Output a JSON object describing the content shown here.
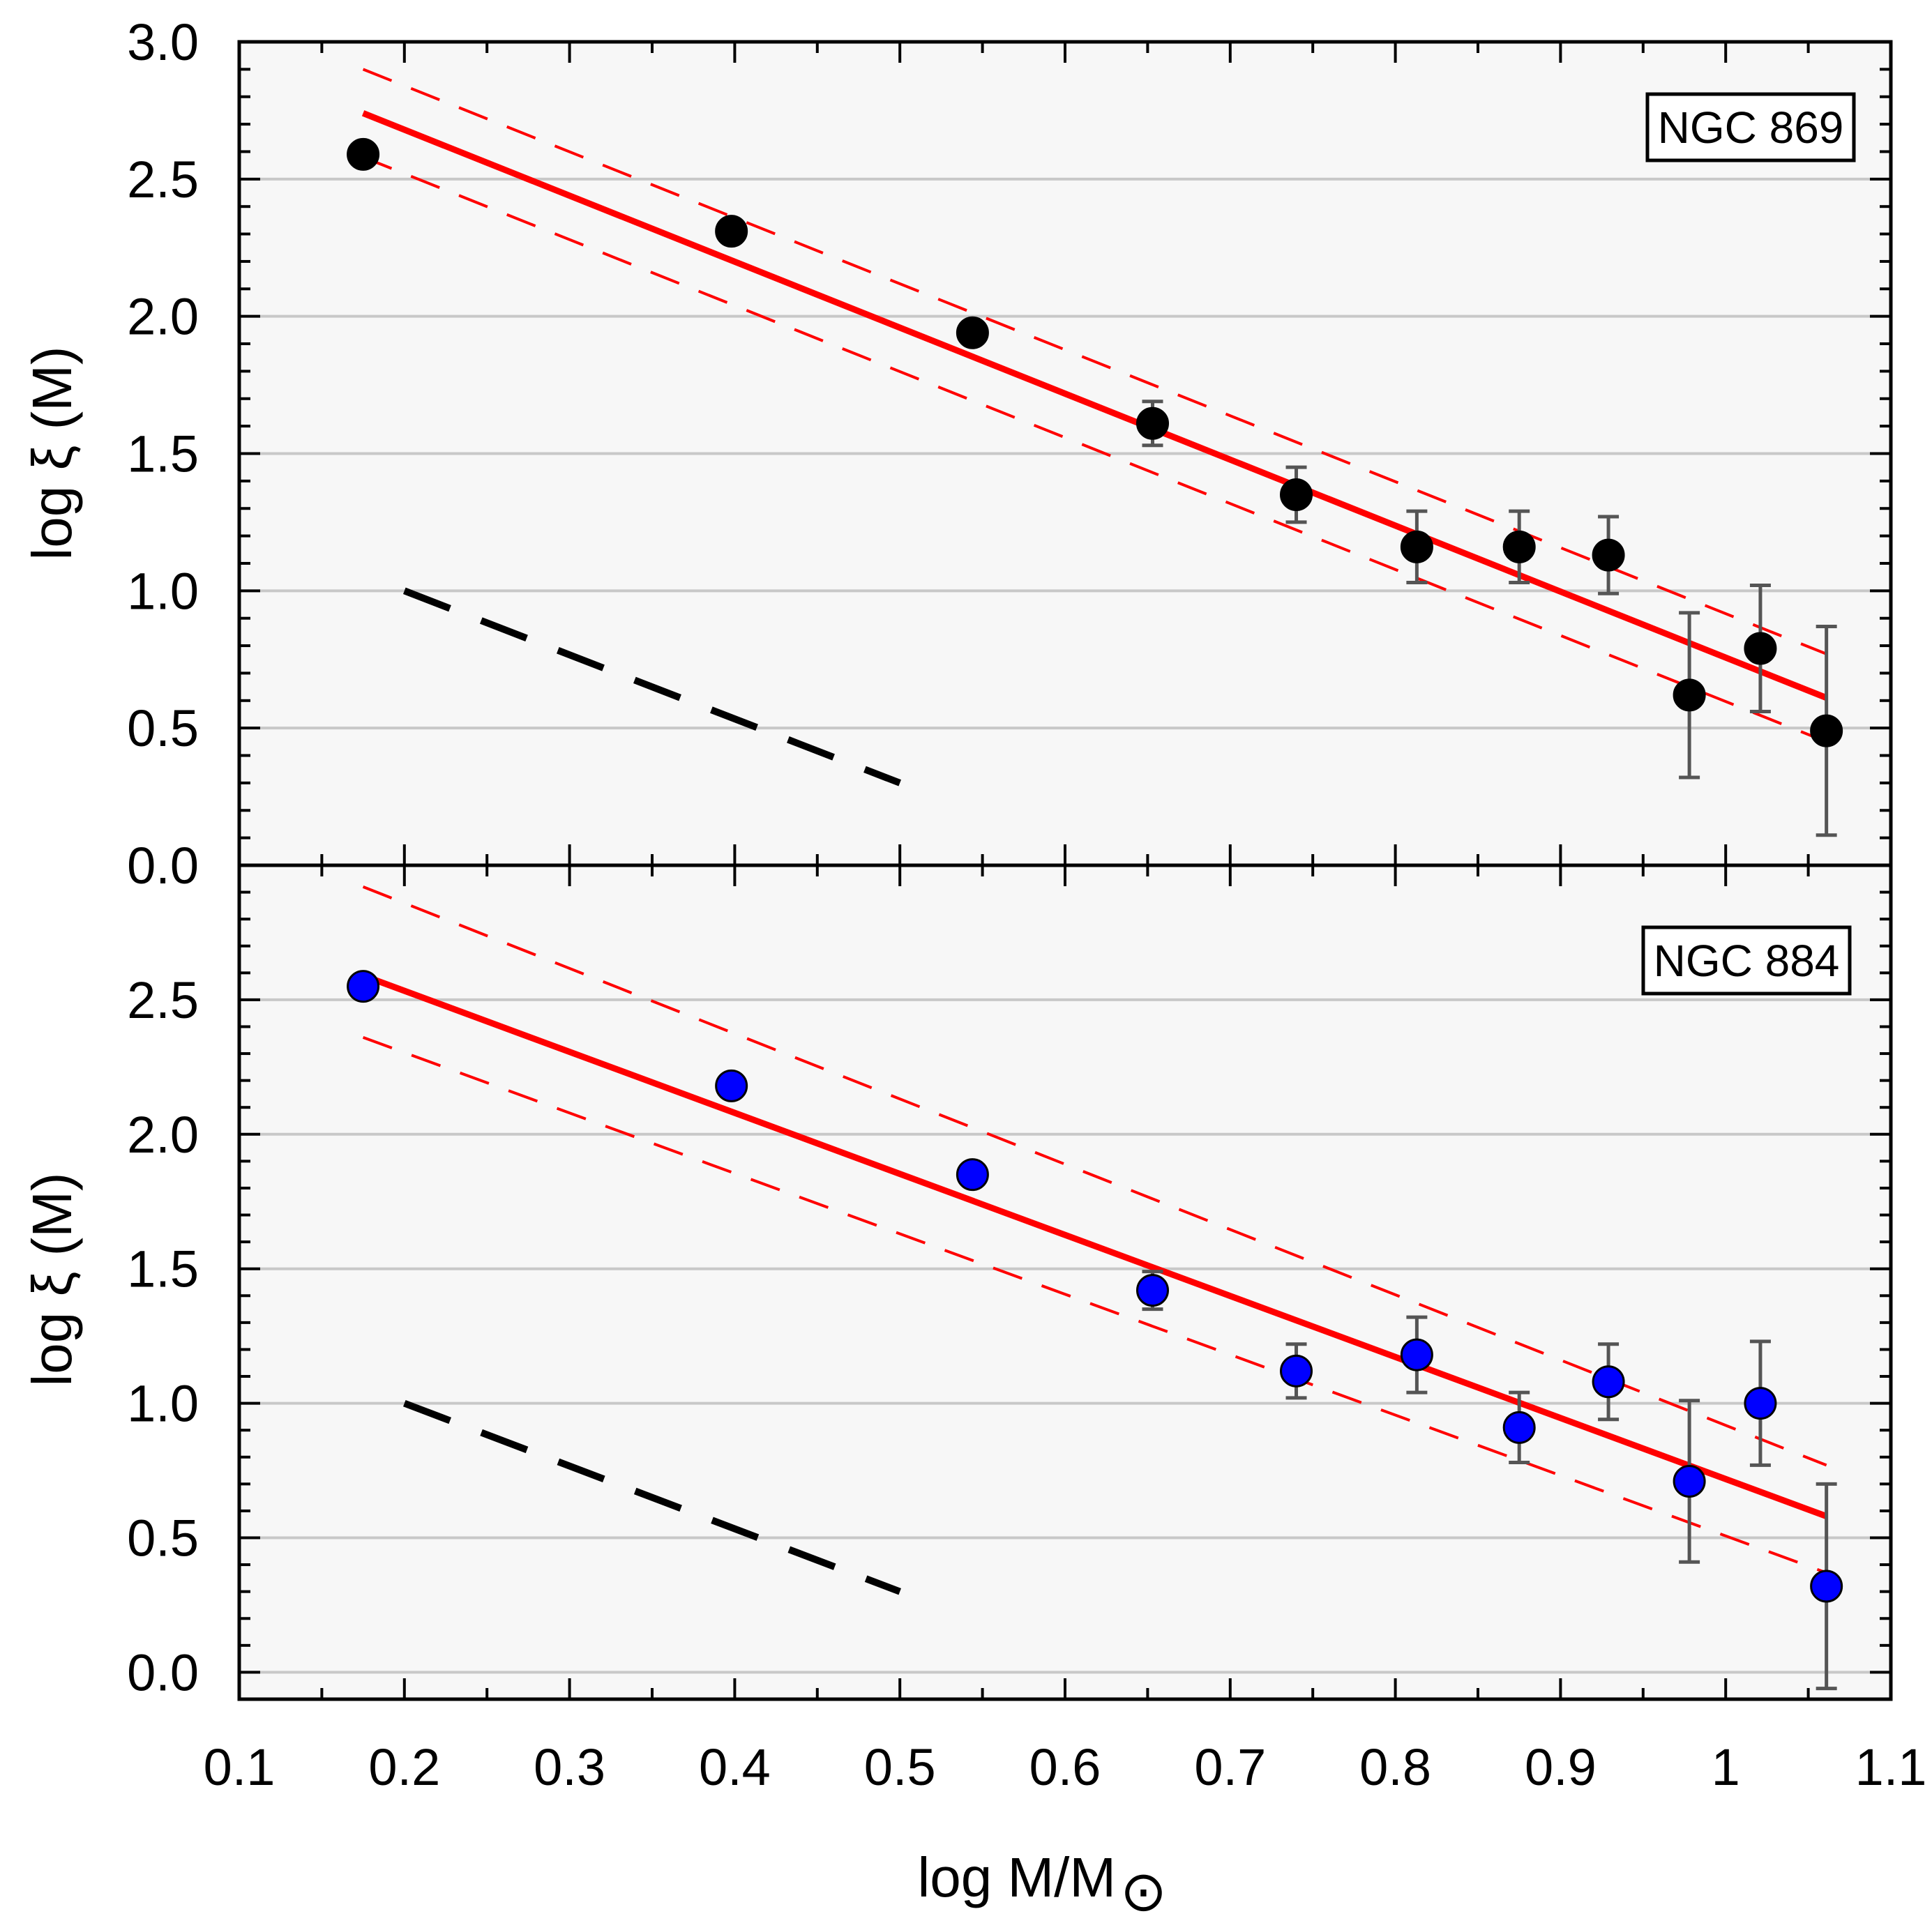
{
  "chart_data": {
    "type": "scatter",
    "xlabel_main": "log M/M",
    "xlabel_subscript": "⊙",
    "xlim": [
      0.1,
      1.1
    ],
    "x_ticks": [
      0.1,
      0.2,
      0.3,
      0.4,
      0.5,
      0.6,
      0.7,
      0.8,
      0.9,
      1.0,
      1.1
    ],
    "x_tick_labels": [
      "0.1",
      "0.2",
      "0.3",
      "0.4",
      "0.5",
      "0.6",
      "0.7",
      "0.8",
      "0.9",
      "1",
      "1.1"
    ],
    "panels": [
      {
        "label": "NGC 869",
        "ylabel": "log ξ (M)",
        "ylim": [
          0.0,
          3.0
        ],
        "y_ticks": [
          0.0,
          0.5,
          1.0,
          1.5,
          2.0,
          2.5,
          3.0
        ],
        "y_tick_labels": [
          "0.0",
          "0.5",
          "1.0",
          "1.5",
          "2.0",
          "2.5",
          "3.0"
        ],
        "gridlines": [
          0.5,
          1.0,
          1.5,
          2.0,
          2.5
        ],
        "marker_color": "#000000",
        "points": [
          {
            "x": 0.175,
            "y": 2.59,
            "err": 0.0
          },
          {
            "x": 0.398,
            "y": 2.31,
            "err": 0.0
          },
          {
            "x": 0.544,
            "y": 1.94,
            "err": 0.0
          },
          {
            "x": 0.653,
            "y": 1.61,
            "err": 0.08
          },
          {
            "x": 0.74,
            "y": 1.35,
            "err": 0.1
          },
          {
            "x": 0.813,
            "y": 1.16,
            "err": 0.13
          },
          {
            "x": 0.875,
            "y": 1.16,
            "err": 0.13
          },
          {
            "x": 0.929,
            "y": 1.13,
            "err": 0.14
          },
          {
            "x": 0.978,
            "y": 0.62,
            "err": 0.3
          },
          {
            "x": 1.021,
            "y": 0.79,
            "err": 0.23
          },
          {
            "x": 1.061,
            "y": 0.49,
            "err": 0.38
          }
        ],
        "fit_line": {
          "x": [
            0.175,
            1.061
          ],
          "y": [
            2.74,
            0.61
          ]
        },
        "conf_upper": {
          "x": [
            0.175,
            1.061
          ],
          "y": [
            2.9,
            0.77
          ]
        },
        "conf_lower": {
          "x": [
            0.175,
            1.061
          ],
          "y": [
            2.58,
            0.45
          ]
        },
        "reference_line": {
          "x": [
            0.2,
            0.5
          ],
          "y": [
            1.0,
            0.3
          ]
        }
      },
      {
        "label": "NGC 884",
        "ylabel": "log ξ (M)",
        "ylim": [
          -0.1,
          3.0
        ],
        "y_ticks": [
          0.0,
          0.5,
          1.0,
          1.5,
          2.0,
          2.5
        ],
        "y_tick_labels": [
          "0.0",
          "0.5",
          "1.0",
          "1.5",
          "2.0",
          "2.5"
        ],
        "gridlines": [
          0.0,
          0.5,
          1.0,
          1.5,
          2.0,
          2.5
        ],
        "marker_color": "#0000ff",
        "points": [
          {
            "x": 0.175,
            "y": 2.55,
            "err": 0.0
          },
          {
            "x": 0.398,
            "y": 2.18,
            "err": 0.0
          },
          {
            "x": 0.544,
            "y": 1.85,
            "err": 0.0
          },
          {
            "x": 0.653,
            "y": 1.42,
            "err": 0.07
          },
          {
            "x": 0.74,
            "y": 1.12,
            "err": 0.1
          },
          {
            "x": 0.813,
            "y": 1.18,
            "err": 0.14
          },
          {
            "x": 0.875,
            "y": 0.91,
            "err": 0.13
          },
          {
            "x": 0.929,
            "y": 1.08,
            "err": 0.14
          },
          {
            "x": 0.978,
            "y": 0.71,
            "err": 0.3
          },
          {
            "x": 1.021,
            "y": 1.0,
            "err": 0.23
          },
          {
            "x": 1.061,
            "y": 0.32,
            "err": 0.38
          }
        ],
        "fit_line": {
          "x": [
            0.175,
            1.061
          ],
          "y": [
            2.59,
            0.58
          ]
        },
        "conf_upper": {
          "x": [
            0.175,
            1.061
          ],
          "y": [
            2.92,
            0.77
          ]
        },
        "conf_lower": {
          "x": [
            0.175,
            1.061
          ],
          "y": [
            2.36,
            0.37
          ]
        },
        "reference_line": {
          "x": [
            0.2,
            0.5
          ],
          "y": [
            1.0,
            0.3
          ]
        }
      }
    ]
  },
  "colors": {
    "plot_background": "#f7f7f7",
    "gridline": "#c8c8c8",
    "fit_line": "#ff0000",
    "reference_line": "#000000",
    "error_bar": "#555555"
  }
}
